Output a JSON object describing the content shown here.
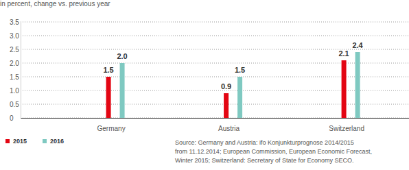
{
  "chart_data": {
    "type": "bar",
    "subtitle": "in percent, change vs. previous year",
    "categories": [
      "Germany",
      "Austria",
      "Switzerland"
    ],
    "series": [
      {
        "name": "2015",
        "color": "#e30613",
        "values": [
          1.5,
          0.9,
          2.1
        ]
      },
      {
        "name": "2016",
        "color": "#7fc9c1",
        "values": [
          2.0,
          1.5,
          2.4
        ],
        "value_labels": [
          "2.0",
          "1.5",
          "2.4"
        ]
      }
    ],
    "ylim": [
      0,
      3.5
    ],
    "yticks": [
      0,
      0.5,
      {
        "value": 1,
        "label": "1.0"
      },
      1.5,
      {
        "value": 2,
        "label": "2.0"
      },
      2.5,
      {
        "value": 3,
        "label": "3.0"
      },
      3.5
    ],
    "grid": true,
    "data_labels": true,
    "legend": "bottom-left",
    "annotations": [
      "Source: Germany and Austria: ifo Konjunkturprognose 2014/2015",
      "from 11.12.2014; European Commission, European Economic Forecast,",
      "Winter 2015; Switzerland: Secretary of State for Economy SECO."
    ]
  }
}
